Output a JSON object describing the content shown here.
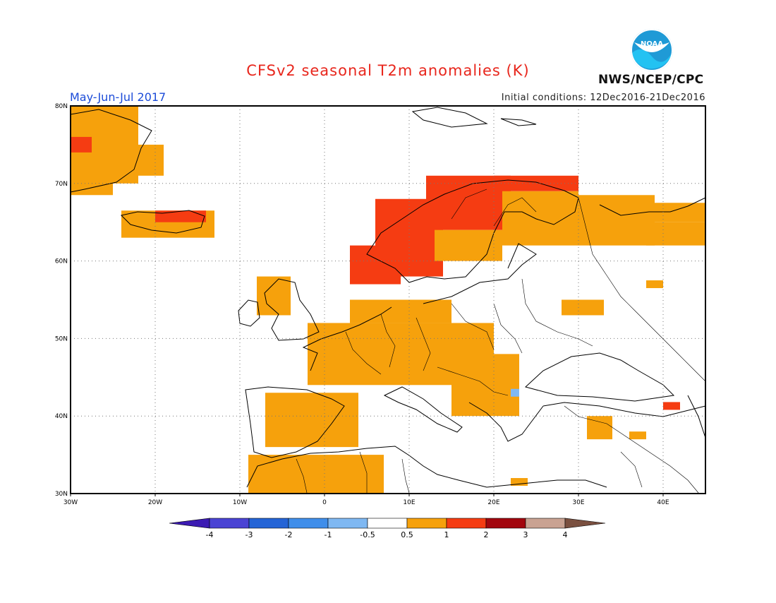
{
  "header": {
    "title": "CFSv2 seasonal T2m anomalies (K)",
    "period": "May-Jun-Jul 2017",
    "initial_conditions": "Initial conditions: 12Dec2016-21Dec2016",
    "agency": "NWS/NCEP/CPC",
    "logo_text": "NOAA"
  },
  "map": {
    "lon_range": [
      -30,
      45
    ],
    "lat_range": [
      30,
      80
    ],
    "lon_ticks": [
      {
        "value": -30,
        "label": "30W"
      },
      {
        "value": -20,
        "label": "20W"
      },
      {
        "value": -10,
        "label": "10W"
      },
      {
        "value": 0,
        "label": "0"
      },
      {
        "value": 10,
        "label": "10E"
      },
      {
        "value": 20,
        "label": "20E"
      },
      {
        "value": 30,
        "label": "30E"
      },
      {
        "value": 40,
        "label": "40E"
      }
    ],
    "lat_ticks": [
      {
        "value": 30,
        "label": "30N"
      },
      {
        "value": 40,
        "label": "40N"
      },
      {
        "value": 50,
        "label": "50N"
      },
      {
        "value": 60,
        "label": "60N"
      },
      {
        "value": 70,
        "label": "70N"
      },
      {
        "value": 80,
        "label": "80N"
      }
    ],
    "grid": "dotted",
    "anomaly_cells_lonlat_deg": [
      {
        "lon": [
          -30,
          -22
        ],
        "lat": [
          70,
          80
        ],
        "class": "0.5-1"
      },
      {
        "lon": [
          -30,
          -25
        ],
        "lat": [
          68.5,
          71
        ],
        "class": "0.5-1"
      },
      {
        "lon": [
          -30,
          -27.5
        ],
        "lat": [
          74,
          76
        ],
        "class": "1-2"
      },
      {
        "lon": [
          -22,
          -19
        ],
        "lat": [
          71,
          75
        ],
        "class": "0.5-1"
      },
      {
        "lon": [
          -24,
          -13
        ],
        "lat": [
          63,
          66.5
        ],
        "class": "0.5-1"
      },
      {
        "lon": [
          -20,
          -14
        ],
        "lat": [
          65,
          66.5
        ],
        "class": "1-2"
      },
      {
        "lon": [
          -8,
          -4
        ],
        "lat": [
          53,
          58
        ],
        "class": "0.5-1"
      },
      {
        "lon": [
          3,
          9
        ],
        "lat": [
          57,
          62
        ],
        "class": "1-2"
      },
      {
        "lon": [
          6,
          14
        ],
        "lat": [
          58,
          68
        ],
        "class": "1-2"
      },
      {
        "lon": [
          12,
          22
        ],
        "lat": [
          64,
          71
        ],
        "class": "1-2"
      },
      {
        "lon": [
          20,
          30
        ],
        "lat": [
          69,
          71
        ],
        "class": "1-2"
      },
      {
        "lon": [
          13,
          21
        ],
        "lat": [
          60,
          64
        ],
        "class": "0.5-1"
      },
      {
        "lon": [
          21,
          30
        ],
        "lat": [
          62,
          69
        ],
        "class": "0.5-1"
      },
      {
        "lon": [
          30,
          39
        ],
        "lat": [
          62,
          68.5
        ],
        "class": "0.5-1"
      },
      {
        "lon": [
          33,
          45
        ],
        "lat": [
          65,
          67.5
        ],
        "class": "0.5-1"
      },
      {
        "lon": [
          38,
          45
        ],
        "lat": [
          62,
          65
        ],
        "class": "0.5-1"
      },
      {
        "lon": [
          -2,
          20
        ],
        "lat": [
          44,
          52
        ],
        "class": "0.5-1"
      },
      {
        "lon": [
          3,
          15
        ],
        "lat": [
          52,
          55
        ],
        "class": "0.5-1"
      },
      {
        "lon": [
          15,
          23
        ],
        "lat": [
          40,
          48
        ],
        "class": "0.5-1"
      },
      {
        "lon": [
          -7,
          4
        ],
        "lat": [
          36,
          43
        ],
        "class": "0.5-1"
      },
      {
        "lon": [
          -9,
          7
        ],
        "lat": [
          30,
          35
        ],
        "class": "0.5-1"
      },
      {
        "lon": [
          28,
          33
        ],
        "lat": [
          53,
          55
        ],
        "class": "0.5-1"
      },
      {
        "lon": [
          31,
          34
        ],
        "lat": [
          37,
          40
        ],
        "class": "0.5-1"
      },
      {
        "lon": [
          36,
          38
        ],
        "lat": [
          37,
          38
        ],
        "class": "0.5-1"
      },
      {
        "lon": [
          38,
          40
        ],
        "lat": [
          56.5,
          57.5
        ],
        "class": "0.5-1"
      },
      {
        "lon": [
          22,
          24
        ],
        "lat": [
          31,
          32
        ],
        "class": "0.5-1"
      },
      {
        "lon": [
          40,
          42
        ],
        "lat": [
          40.8,
          41.8
        ],
        "class": "1-2"
      },
      {
        "lon": [
          22,
          23
        ],
        "lat": [
          42.5,
          43.5
        ],
        "class": "-1--0.5"
      }
    ]
  },
  "colorbar": {
    "labels": [
      "-4",
      "-3",
      "-2",
      "-1",
      "-0.5",
      "0.5",
      "1",
      "2",
      "3",
      "4"
    ],
    "colors": [
      "#3c1bb3",
      "#4a43d4",
      "#2464d6",
      "#3f8eea",
      "#7fb8f2",
      "#ffffff",
      "#f6a10c",
      "#f53c12",
      "#a2060e",
      "#c9a292",
      "#7a5040"
    ]
  }
}
